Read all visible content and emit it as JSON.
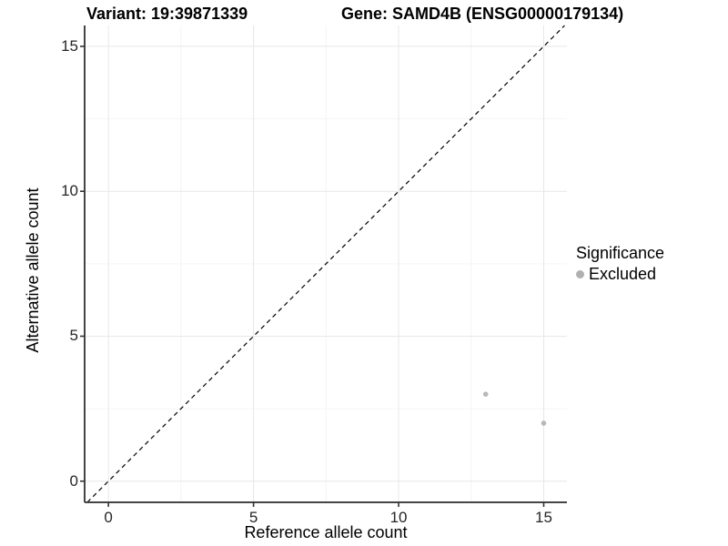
{
  "chart_data": {
    "type": "scatter",
    "title_left": "Variant: 19:39871339",
    "title_right": "Gene: SAMD4B (ENSG00000179134)",
    "xlabel": "Reference allele count",
    "ylabel": "Alternative allele count",
    "xlim": [
      -0.82,
      15.8
    ],
    "ylim": [
      -0.73,
      15.72
    ],
    "x_ticks": [
      0,
      5,
      10,
      15
    ],
    "x_tick_labels": [
      "0",
      "5",
      "10",
      "15"
    ],
    "y_ticks": [
      0,
      5,
      10,
      15
    ],
    "y_tick_labels": [
      "0",
      "5",
      "10",
      "15"
    ],
    "x_minor_ticks": [
      2.5,
      7.5,
      12.5
    ],
    "y_minor_ticks": [
      2.5,
      7.5,
      12.5
    ],
    "grid": true,
    "legend_position": "right",
    "reference_line": {
      "type": "identity y=x",
      "style": "dashed",
      "color": "#000000"
    },
    "series": [
      {
        "name": "Excluded",
        "color": "#b8b8b8",
        "points": [
          {
            "x": 13,
            "y": 3
          },
          {
            "x": 15,
            "y": 2
          }
        ]
      }
    ],
    "legend": {
      "title": "Significance",
      "entries": [
        {
          "label": "Excluded",
          "color": "#b0b0b0"
        }
      ]
    },
    "colors": {
      "major_grid": "#e7e7e7",
      "minor_grid": "#f4f4f4",
      "axis_line": "#454545",
      "tick_mark": "#333333",
      "point": "#b8b8b8",
      "background": "#ffffff"
    }
  }
}
